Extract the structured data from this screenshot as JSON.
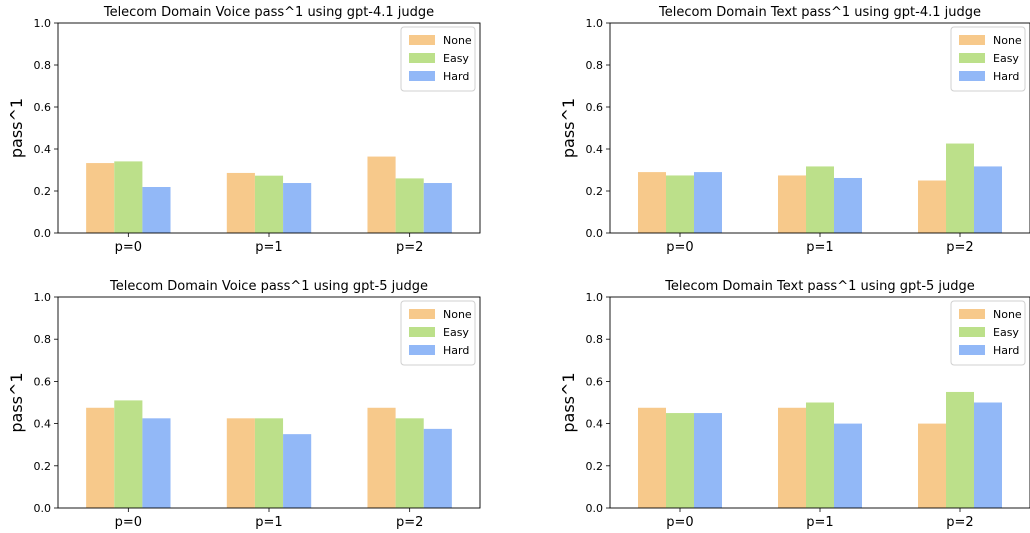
{
  "chart_data": [
    {
      "type": "bar",
      "title": "Telecom Domain Voice pass^1 using gpt-4.1 judge",
      "xlabel": "",
      "ylabel": "pass^1",
      "ylim": [
        0,
        1.0
      ],
      "yticks": [
        "0.0",
        "0.2",
        "0.4",
        "0.6",
        "0.8",
        "1.0"
      ],
      "categories": [
        "p=0",
        "p=1",
        "p=2"
      ],
      "legend_position": "top-right",
      "grid": false,
      "series": [
        {
          "name": "None",
          "color": "#f7c98b",
          "values": [
            0.333,
            0.286,
            0.364
          ]
        },
        {
          "name": "Easy",
          "color": "#bce08a",
          "values": [
            0.341,
            0.273,
            0.26
          ]
        },
        {
          "name": "Hard",
          "color": "#92b8f7",
          "values": [
            0.219,
            0.238,
            0.238
          ]
        }
      ]
    },
    {
      "type": "bar",
      "title": "Telecom Domain Text pass^1 using gpt-4.1 judge",
      "xlabel": "",
      "ylabel": "pass^1",
      "ylim": [
        0,
        1.0
      ],
      "yticks": [
        "0.0",
        "0.2",
        "0.4",
        "0.6",
        "0.8",
        "1.0"
      ],
      "categories": [
        "p=0",
        "p=1",
        "p=2"
      ],
      "legend_position": "top-right",
      "grid": false,
      "series": [
        {
          "name": "None",
          "color": "#f7c98b",
          "values": [
            0.29,
            0.274,
            0.25
          ]
        },
        {
          "name": "Easy",
          "color": "#bce08a",
          "values": [
            0.274,
            0.317,
            0.426
          ]
        },
        {
          "name": "Hard",
          "color": "#92b8f7",
          "values": [
            0.29,
            0.262,
            0.317
          ]
        }
      ]
    },
    {
      "type": "bar",
      "title": "Telecom Domain Voice pass^1 using gpt-5 judge",
      "xlabel": "",
      "ylabel": "pass^1",
      "ylim": [
        0,
        1.0
      ],
      "yticks": [
        "0.0",
        "0.2",
        "0.4",
        "0.6",
        "0.8",
        "1.0"
      ],
      "categories": [
        "p=0",
        "p=1",
        "p=2"
      ],
      "legend_position": "top-right",
      "grid": false,
      "series": [
        {
          "name": "None",
          "color": "#f7c98b",
          "values": [
            0.475,
            0.425,
            0.475
          ]
        },
        {
          "name": "Easy",
          "color": "#bce08a",
          "values": [
            0.51,
            0.425,
            0.425
          ]
        },
        {
          "name": "Hard",
          "color": "#92b8f7",
          "values": [
            0.425,
            0.35,
            0.375
          ]
        }
      ]
    },
    {
      "type": "bar",
      "title": "Telecom Domain Text pass^1 using gpt-5 judge",
      "xlabel": "",
      "ylabel": "pass^1",
      "ylim": [
        0,
        1.0
      ],
      "yticks": [
        "0.0",
        "0.2",
        "0.4",
        "0.6",
        "0.8",
        "1.0"
      ],
      "categories": [
        "p=0",
        "p=1",
        "p=2"
      ],
      "legend_position": "top-right",
      "grid": false,
      "series": [
        {
          "name": "None",
          "color": "#f7c98b",
          "values": [
            0.475,
            0.475,
            0.4
          ]
        },
        {
          "name": "Easy",
          "color": "#bce08a",
          "values": [
            0.45,
            0.5,
            0.55
          ]
        },
        {
          "name": "Hard",
          "color": "#92b8f7",
          "values": [
            0.45,
            0.4,
            0.5
          ]
        }
      ]
    }
  ]
}
